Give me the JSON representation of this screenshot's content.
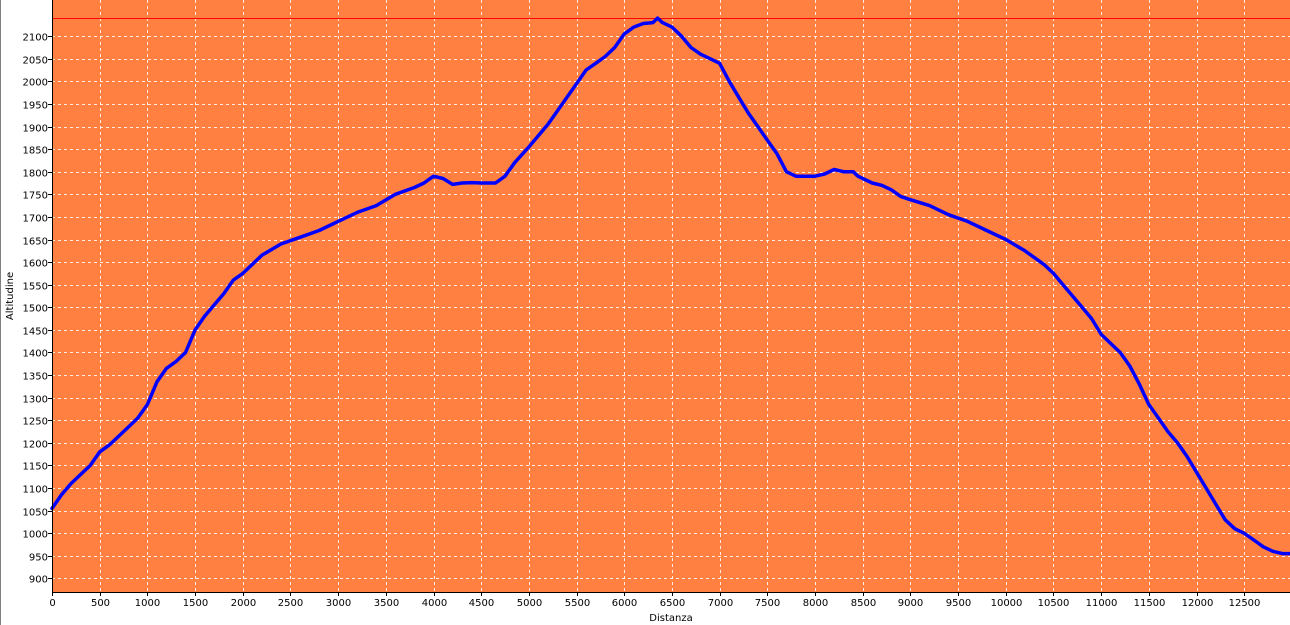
{
  "chart_data": {
    "type": "line",
    "xlabel": "Distanza",
    "ylabel": "Altitudine",
    "xlim": [
      0,
      12980
    ],
    "ylim": [
      870,
      2180
    ],
    "x_ticks": [
      0,
      500,
      1000,
      1500,
      2000,
      2500,
      3000,
      3500,
      4000,
      4500,
      5000,
      5500,
      6000,
      6500,
      7000,
      7500,
      8000,
      8500,
      9000,
      9500,
      10000,
      10500,
      11000,
      11500,
      12000,
      12500
    ],
    "y_ticks": [
      900,
      950,
      1000,
      1050,
      1100,
      1150,
      1200,
      1250,
      1300,
      1350,
      1400,
      1450,
      1500,
      1550,
      1600,
      1650,
      1700,
      1750,
      1800,
      1850,
      1900,
      1950,
      2000,
      2050,
      2100
    ],
    "grid": true,
    "reference_line": 2141,
    "colors": {
      "plot_background": "#FF8040",
      "line": "#0000FF",
      "reference_line": "#FF0000",
      "grid": "#FFFFFF"
    },
    "series": [
      {
        "x": [
          0,
          100,
          200,
          300,
          400,
          500,
          600,
          700,
          800,
          900,
          1000,
          1100,
          1200,
          1300,
          1400,
          1500,
          1600,
          1700,
          1800,
          1900,
          2000,
          2200,
          2400,
          2600,
          2800,
          3000,
          3200,
          3400,
          3600,
          3800,
          3900,
          4000,
          4100,
          4200,
          4300,
          4400,
          4500,
          4650,
          4750,
          4850,
          5000,
          5100,
          5200,
          5300,
          5400,
          5500,
          5600,
          5700,
          5800,
          5900,
          6000,
          6100,
          6200,
          6300,
          6350,
          6400,
          6500,
          6600,
          6700,
          6800,
          6900,
          7000,
          7100,
          7200,
          7300,
          7400,
          7500,
          7600,
          7700,
          7800,
          7900,
          8000,
          8100,
          8200,
          8300,
          8400,
          8450,
          8500,
          8600,
          8700,
          8800,
          8900,
          9000,
          9200,
          9400,
          9600,
          9800,
          10000,
          10200,
          10400,
          10500,
          10600,
          10700,
          10800,
          10900,
          11000,
          11100,
          11200,
          11300,
          11400,
          11500,
          11600,
          11700,
          11800,
          11900,
          12000,
          12100,
          12200,
          12300,
          12400,
          12500,
          12600,
          12700,
          12800,
          12900,
          12980
        ],
        "y": [
          1055,
          1085,
          1110,
          1130,
          1150,
          1180,
          1195,
          1215,
          1235,
          1255,
          1285,
          1335,
          1365,
          1380,
          1400,
          1450,
          1480,
          1505,
          1530,
          1560,
          1575,
          1615,
          1640,
          1655,
          1670,
          1690,
          1710,
          1725,
          1750,
          1765,
          1775,
          1790,
          1785,
          1772,
          1775,
          1776,
          1775,
          1775,
          1790,
          1820,
          1855,
          1880,
          1905,
          1935,
          1965,
          1995,
          2025,
          2040,
          2055,
          2075,
          2105,
          2120,
          2128,
          2130,
          2140,
          2130,
          2120,
          2100,
          2075,
          2060,
          2050,
          2040,
          2000,
          1965,
          1930,
          1900,
          1870,
          1840,
          1800,
          1790,
          1790,
          1790,
          1795,
          1805,
          1800,
          1800,
          1790,
          1785,
          1775,
          1770,
          1760,
          1745,
          1738,
          1725,
          1705,
          1690,
          1670,
          1650,
          1625,
          1595,
          1575,
          1550,
          1525,
          1500,
          1475,
          1440,
          1420,
          1400,
          1370,
          1330,
          1285,
          1255,
          1225,
          1200,
          1170,
          1135,
          1100,
          1065,
          1030,
          1010,
          1000,
          985,
          970,
          960,
          955,
          955
        ]
      }
    ]
  }
}
